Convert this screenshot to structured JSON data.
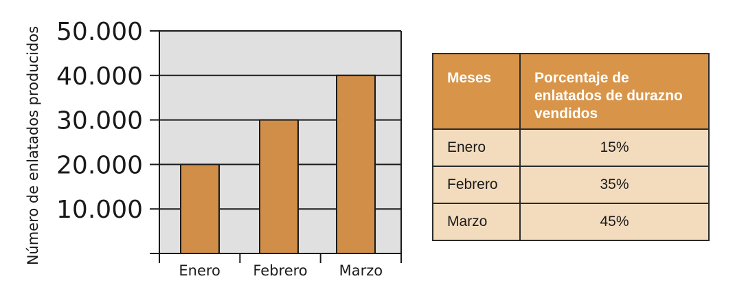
{
  "chart_data": {
    "type": "bar",
    "categories": [
      "Enero",
      "Febrero",
      "Marzo"
    ],
    "values": [
      20000,
      30000,
      40000
    ],
    "ylabel": "Número de enlatados producidos",
    "ylim": [
      0,
      50000
    ],
    "yticks": [
      "50.000",
      "40.000",
      "30.000",
      "20.000",
      "10.000"
    ],
    "ytick_values": [
      50000,
      40000,
      30000,
      20000,
      10000
    ],
    "grid": true,
    "bar_color": "#d18e48",
    "plot_bg": "#e1e0e1"
  },
  "table": {
    "headers": [
      "Meses",
      "Porcentaje de enlatados de durazno vendidos"
    ],
    "rows": [
      [
        "Enero",
        "15%"
      ],
      [
        "Febrero",
        "35%"
      ],
      [
        "Marzo",
        "45%"
      ]
    ],
    "header_color": "#d8954a",
    "cell_color": "#f3dcbd"
  }
}
